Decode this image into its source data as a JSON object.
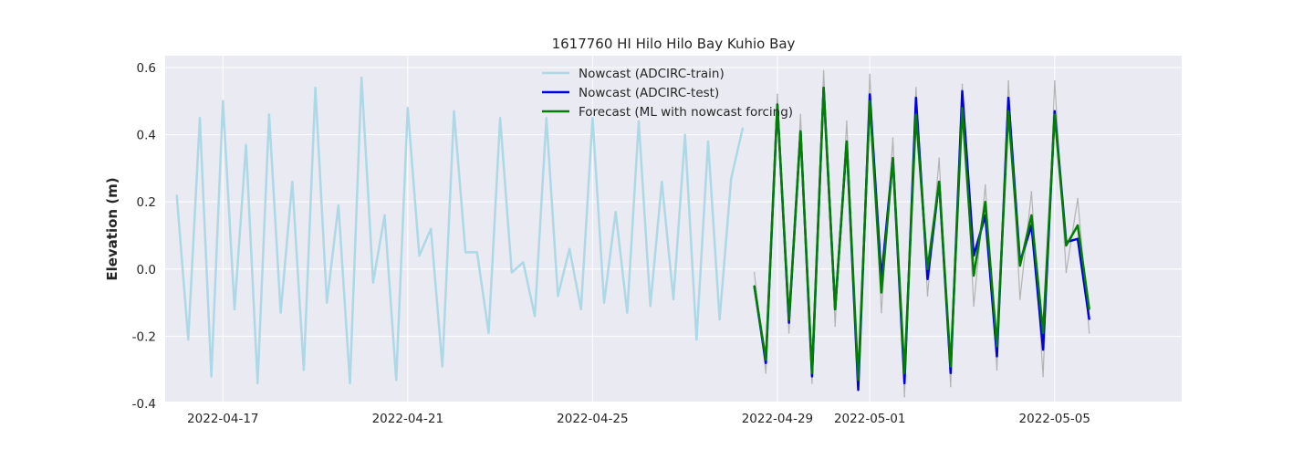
{
  "chart_data": {
    "type": "line",
    "title": "1617760 HI Hilo Hilo Bay Kuhio Bay",
    "xlabel": "",
    "ylabel": "Elevation (m)",
    "xlim": [
      "2022-04-15T18:00",
      "2022-05-07T18:00"
    ],
    "ylim": [
      -0.43,
      0.6
    ],
    "x_ticks": [
      "2022-04-17",
      "2022-04-21",
      "2022-04-25",
      "2022-04-29",
      "2022-05-01",
      "2022-05-05"
    ],
    "y_ticks": [
      -0.4,
      -0.2,
      0.0,
      0.2,
      0.4,
      0.6
    ],
    "grid": true,
    "legend_position": "top-center",
    "background": "#eaeaf2",
    "series": [
      {
        "name": "",
        "color": "#b3b3b3",
        "x": [
          "2022-04-28T12:00",
          "2022-04-28T18:00",
          "2022-04-29T00:00",
          "2022-04-29T06:00",
          "2022-04-29T12:00",
          "2022-04-29T18:00",
          "2022-04-30T00:00",
          "2022-04-30T06:00",
          "2022-04-30T12:00",
          "2022-04-30T18:00",
          "2022-05-01T00:00",
          "2022-05-01T06:00",
          "2022-05-01T12:00",
          "2022-05-01T18:00",
          "2022-05-02T00:00",
          "2022-05-02T06:00",
          "2022-05-02T12:00",
          "2022-05-02T18:00",
          "2022-05-03T00:00",
          "2022-05-03T06:00",
          "2022-05-03T12:00",
          "2022-05-03T18:00",
          "2022-05-04T00:00",
          "2022-05-04T06:00",
          "2022-05-04T12:00",
          "2022-05-04T18:00",
          "2022-05-05T00:00",
          "2022-05-05T06:00",
          "2022-05-05T12:00",
          "2022-05-05T18:00"
        ],
        "values": [
          -0.01,
          -0.31,
          0.52,
          -0.19,
          0.46,
          -0.34,
          0.59,
          -0.17,
          0.44,
          -0.35,
          0.58,
          -0.13,
          0.39,
          -0.38,
          0.54,
          -0.08,
          0.33,
          -0.35,
          0.55,
          -0.11,
          0.25,
          -0.3,
          0.56,
          -0.09,
          0.23,
          -0.32,
          0.56,
          -0.01,
          0.21,
          -0.19
        ]
      },
      {
        "name": "Nowcast (ADCIRC-train)",
        "color": "#add8e6",
        "x": [
          "2022-04-16T00:00",
          "2022-04-16T06:00",
          "2022-04-16T12:00",
          "2022-04-16T18:00",
          "2022-04-17T00:00",
          "2022-04-17T06:00",
          "2022-04-17T12:00",
          "2022-04-17T18:00",
          "2022-04-18T00:00",
          "2022-04-18T06:00",
          "2022-04-18T12:00",
          "2022-04-18T18:00",
          "2022-04-19T00:00",
          "2022-04-19T06:00",
          "2022-04-19T12:00",
          "2022-04-19T18:00",
          "2022-04-20T00:00",
          "2022-04-20T06:00",
          "2022-04-20T12:00",
          "2022-04-20T18:00",
          "2022-04-21T00:00",
          "2022-04-21T06:00",
          "2022-04-21T12:00",
          "2022-04-21T18:00",
          "2022-04-22T00:00",
          "2022-04-22T06:00",
          "2022-04-22T12:00",
          "2022-04-22T18:00",
          "2022-04-23T00:00",
          "2022-04-23T06:00",
          "2022-04-23T12:00",
          "2022-04-23T18:00",
          "2022-04-24T00:00",
          "2022-04-24T06:00",
          "2022-04-24T12:00",
          "2022-04-24T18:00",
          "2022-04-25T00:00",
          "2022-04-25T06:00",
          "2022-04-25T12:00",
          "2022-04-25T18:00",
          "2022-04-26T00:00",
          "2022-04-26T06:00",
          "2022-04-26T12:00",
          "2022-04-26T18:00",
          "2022-04-27T00:00",
          "2022-04-27T06:00",
          "2022-04-27T12:00",
          "2022-04-27T18:00",
          "2022-04-28T00:00",
          "2022-04-28T06:00"
        ],
        "values": [
          0.22,
          -0.21,
          0.45,
          -0.32,
          0.5,
          -0.12,
          0.37,
          -0.34,
          0.46,
          -0.13,
          0.26,
          -0.3,
          0.54,
          -0.1,
          0.19,
          -0.34,
          0.57,
          -0.04,
          0.16,
          -0.33,
          0.48,
          0.04,
          0.12,
          -0.29,
          0.47,
          0.05,
          0.05,
          -0.19,
          0.45,
          -0.01,
          0.02,
          -0.14,
          0.45,
          -0.08,
          0.06,
          -0.12,
          0.45,
          -0.1,
          0.17,
          -0.13,
          0.44,
          -0.11,
          0.26,
          -0.09,
          0.4,
          -0.21,
          0.38,
          -0.15,
          0.27,
          0.42
        ]
      },
      {
        "name": "Nowcast (ADCIRC-test)",
        "color": "#0000e6",
        "x": [
          "2022-04-28T12:00",
          "2022-04-28T18:00",
          "2022-04-29T00:00",
          "2022-04-29T06:00",
          "2022-04-29T12:00",
          "2022-04-29T18:00",
          "2022-04-30T00:00",
          "2022-04-30T06:00",
          "2022-04-30T12:00",
          "2022-04-30T18:00",
          "2022-05-01T00:00",
          "2022-05-01T06:00",
          "2022-05-01T12:00",
          "2022-05-01T18:00",
          "2022-05-02T00:00",
          "2022-05-02T06:00",
          "2022-05-02T12:00",
          "2022-05-02T18:00",
          "2022-05-03T00:00",
          "2022-05-03T06:00",
          "2022-05-03T12:00",
          "2022-05-03T18:00",
          "2022-05-04T00:00",
          "2022-05-04T06:00",
          "2022-05-04T12:00",
          "2022-05-04T18:00",
          "2022-05-05T00:00",
          "2022-05-05T06:00",
          "2022-05-05T12:00",
          "2022-05-05T18:00"
        ],
        "values": [
          -0.05,
          -0.28,
          0.49,
          -0.16,
          0.41,
          -0.32,
          0.54,
          -0.12,
          0.38,
          -0.36,
          0.52,
          -0.03,
          0.33,
          -0.34,
          0.51,
          -0.03,
          0.26,
          -0.31,
          0.53,
          0.04,
          0.16,
          -0.26,
          0.51,
          0.02,
          0.13,
          -0.24,
          0.47,
          0.08,
          0.09,
          -0.15
        ]
      },
      {
        "name": "Forecast (ML with nowcast forcing)",
        "color": "#008000",
        "x": [
          "2022-04-28T12:00",
          "2022-04-28T18:00",
          "2022-04-29T00:00",
          "2022-04-29T06:00",
          "2022-04-29T12:00",
          "2022-04-29T18:00",
          "2022-04-30T00:00",
          "2022-04-30T06:00",
          "2022-04-30T12:00",
          "2022-04-30T18:00",
          "2022-05-01T00:00",
          "2022-05-01T06:00",
          "2022-05-01T12:00",
          "2022-05-01T18:00",
          "2022-05-02T00:00",
          "2022-05-02T06:00",
          "2022-05-02T12:00",
          "2022-05-02T18:00",
          "2022-05-03T00:00",
          "2022-05-03T06:00",
          "2022-05-03T12:00",
          "2022-05-03T18:00",
          "2022-05-04T00:00",
          "2022-05-04T06:00",
          "2022-05-04T12:00",
          "2022-05-04T18:00",
          "2022-05-05T00:00",
          "2022-05-05T06:00",
          "2022-05-05T12:00",
          "2022-05-05T18:00"
        ],
        "values": [
          -0.05,
          -0.27,
          0.49,
          -0.15,
          0.41,
          -0.31,
          0.54,
          -0.12,
          0.38,
          -0.33,
          0.5,
          -0.07,
          0.33,
          -0.31,
          0.46,
          0.0,
          0.26,
          -0.29,
          0.48,
          -0.02,
          0.2,
          -0.23,
          0.47,
          0.01,
          0.16,
          -0.19,
          0.46,
          0.07,
          0.13,
          -0.12
        ]
      }
    ]
  }
}
